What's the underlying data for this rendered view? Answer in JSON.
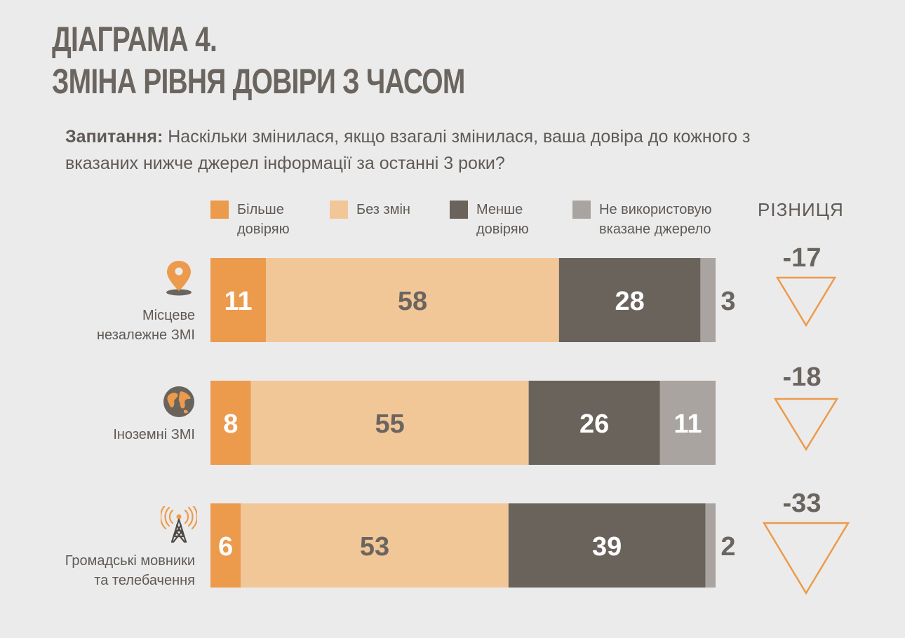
{
  "title": {
    "line1": "ДІАГРАМА 4.",
    "line2": "ЗМІНА РІВНЯ ДОВІРИ З ЧАСОМ"
  },
  "question": {
    "label": "Запитання:",
    "text": "Наскільки змінилася, якщо взагалі змінилася, ваша довіра до кожного з вказаних нижче джерел інформації за останні 3 роки?"
  },
  "legend": [
    {
      "label": "Більше\nдовіряю",
      "color": "#ec9a4c"
    },
    {
      "label": "Без змін",
      "color": "#f2c797"
    },
    {
      "label": "Менше\nдовіряю",
      "color": "#69635c"
    },
    {
      "label": "Не використовую\nвказане джерело",
      "color": "#a9a4a0"
    }
  ],
  "difference_header": "РІЗНИЦЯ",
  "categories": [
    {
      "label": "Місцеве\nнезалежне ЗМІ",
      "icon": "location-pin-icon"
    },
    {
      "label": "Іноземні ЗМІ",
      "icon": "globe-icon"
    },
    {
      "label": "Громадські мовники\nта телебачення",
      "icon": "broadcast-tower-icon"
    }
  ],
  "chart_data": {
    "type": "bar",
    "orientation": "horizontal",
    "stacked": true,
    "categories": [
      "Місцеве незалежне ЗМІ",
      "Іноземні ЗМІ",
      "Громадські мовники та телебачення"
    ],
    "series": [
      {
        "name": "Більше довіряю",
        "color": "#ec9a4c",
        "values": [
          11,
          8,
          6
        ]
      },
      {
        "name": "Без змін",
        "color": "#f2c797",
        "values": [
          58,
          55,
          53
        ]
      },
      {
        "name": "Менше довіряю",
        "color": "#69635c",
        "values": [
          28,
          26,
          39
        ]
      },
      {
        "name": "Не використовую вказане джерело",
        "color": "#a9a4a0",
        "values": [
          3,
          11,
          2
        ]
      }
    ],
    "labels": [
      [
        "11",
        "58",
        "28",
        "3"
      ],
      [
        "8",
        "55",
        "26",
        "11"
      ],
      [
        "6",
        "53",
        "39",
        "2"
      ]
    ],
    "difference": [
      "-17",
      "-18",
      "-33"
    ],
    "difference_values": [
      -17,
      -18,
      -33
    ],
    "xlim": [
      0,
      100
    ],
    "legend_position": "top",
    "grid": false,
    "colors": {
      "label_dark": "#6b6560",
      "label_light": "#ffffff",
      "triangle": "#ec9a4c"
    }
  }
}
